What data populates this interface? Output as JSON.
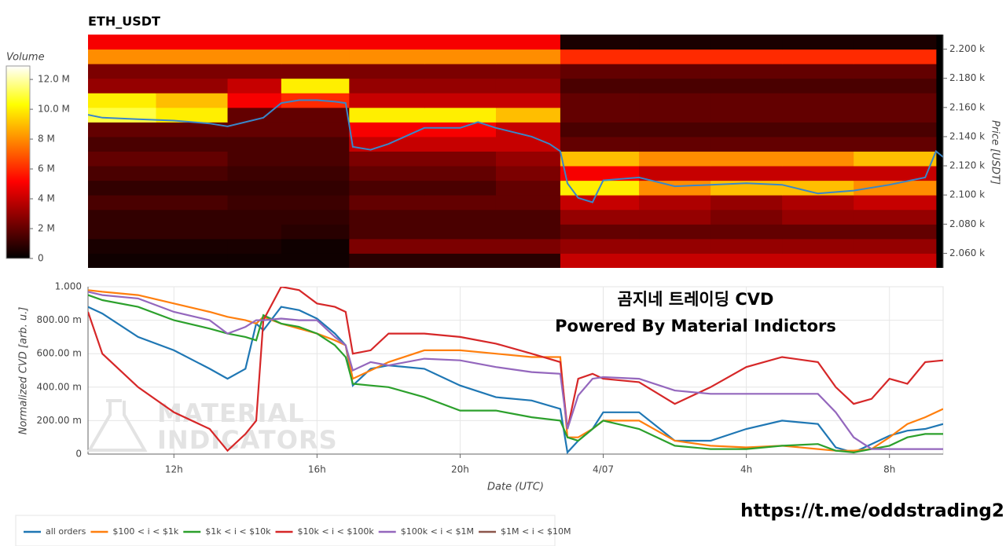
{
  "chart_data": [
    {
      "type": "heatmap",
      "title": "ETH_USDT",
      "colorbar_title": "Volume",
      "y_label": "Price [USDT]",
      "x_bins": [
        9.5,
        11.5,
        13.5,
        15,
        16.9,
        19,
        21,
        22.8,
        25,
        27,
        29,
        31,
        33.3
      ],
      "y_bins": [
        2050,
        2060,
        2070,
        2080,
        2090,
        2100,
        2110,
        2120,
        2130,
        2140,
        2150,
        2160,
        2170,
        2180,
        2190,
        2200,
        2210
      ],
      "z": [
        [
          0.3,
          0.3,
          0.3,
          0.3,
          0.8,
          0.8,
          0.8,
          4,
          4,
          4,
          4,
          4
        ],
        [
          0.5,
          0.5,
          0.5,
          0.3,
          2.5,
          2.5,
          2.5,
          3,
          3,
          3,
          3,
          3
        ],
        [
          1,
          1,
          1,
          0.8,
          1.5,
          1.5,
          1.5,
          2,
          2,
          2,
          2,
          2
        ],
        [
          1,
          1,
          1,
          1,
          1.5,
          1.5,
          1.5,
          3,
          3,
          2.5,
          3,
          3
        ],
        [
          1.5,
          1.5,
          1.2,
          1.2,
          2,
          2,
          2,
          4,
          3.5,
          3,
          3.5,
          4
        ],
        [
          1,
          1,
          1,
          1,
          1.5,
          1.5,
          2,
          10,
          8,
          9,
          9,
          8
        ],
        [
          1.5,
          1.5,
          1.2,
          1.2,
          2,
          2,
          2.5,
          5,
          4,
          4,
          4,
          4
        ],
        [
          2,
          2,
          1.5,
          1.5,
          2.5,
          2.5,
          3,
          9,
          8,
          8,
          8,
          9
        ],
        [
          1.5,
          1.5,
          1.5,
          1.5,
          4,
          4,
          4,
          2,
          2,
          2,
          2,
          2
        ],
        [
          2,
          2,
          2,
          2,
          5,
          5,
          4,
          1.5,
          1.5,
          1.5,
          1.5,
          1.5
        ],
        [
          11,
          10,
          2,
          2,
          10,
          10,
          9,
          2,
          2,
          2,
          2,
          2
        ],
        [
          10,
          9,
          5,
          6,
          4,
          4,
          4,
          2,
          2,
          2,
          2,
          2
        ],
        [
          3,
          3,
          4,
          10,
          3,
          3,
          3,
          1.5,
          1.5,
          1.5,
          1.5,
          1.5
        ],
        [
          2.5,
          2.5,
          2.5,
          2.5,
          2.5,
          2.5,
          2.5,
          2,
          2,
          2,
          2,
          2
        ],
        [
          8,
          8,
          8,
          8,
          8,
          8,
          8,
          6,
          6,
          6,
          6,
          6
        ],
        [
          5,
          5,
          5,
          5,
          5,
          5,
          5,
          0.5,
          0.5,
          0.5,
          0.5,
          0.5
        ]
      ],
      "colormap": [
        "#000000",
        "#800000",
        "#ff0000",
        "#ff8000",
        "#ffff00",
        "#ffffff"
      ],
      "clim": [
        0,
        12.9
      ],
      "cticks": [
        0,
        {
          "value": 2,
          "label": "2 M"
        },
        {
          "value": 4,
          "label": "4 M"
        },
        {
          "value": 6,
          "label": "6 M"
        },
        {
          "value": 8,
          "label": "8 M"
        },
        {
          "value": 10,
          "label": "10.0 M"
        },
        {
          "value": 12,
          "label": "12.0 M"
        }
      ],
      "xlim": [
        9.6,
        33.5
      ],
      "ylim": [
        2050,
        2210
      ],
      "yticks": [
        {
          "value": 2060,
          "label": "2.060 k"
        },
        {
          "value": 2080,
          "label": "2.080 k"
        },
        {
          "value": 2100,
          "label": "2.100 k"
        },
        {
          "value": 2120,
          "label": "2.120 k"
        },
        {
          "value": 2140,
          "label": "2.140 k"
        },
        {
          "value": 2160,
          "label": "2.160 k"
        },
        {
          "value": 2180,
          "label": "2.180 k"
        },
        {
          "value": 2200,
          "label": "2.200 k"
        }
      ],
      "price_line": {
        "color": "#3a86c8",
        "x": [
          9.6,
          10,
          11,
          12,
          13,
          13.5,
          14,
          14.5,
          15,
          15.5,
          16,
          16.5,
          16.8,
          17,
          17.5,
          18,
          19,
          20,
          20.5,
          21,
          22,
          22.5,
          22.8,
          23,
          23.3,
          23.7,
          24,
          25,
          26,
          27,
          28,
          29,
          30,
          31,
          32,
          33,
          33.3,
          33.5
        ],
        "values": [
          2155,
          2153,
          2152,
          2151,
          2149,
          2147,
          2150,
          2153,
          2163,
          2165,
          2165,
          2164,
          2163,
          2133,
          2131,
          2135,
          2146,
          2146,
          2150,
          2146,
          2140,
          2135,
          2130,
          2108,
          2098,
          2095,
          2110,
          2112,
          2106,
          2107,
          2108,
          2107,
          2101,
          2103,
          2107,
          2112,
          2130,
          2126
        ]
      }
    },
    {
      "type": "line",
      "x_label": "Date (UTC)",
      "y_label": "Normalized CVD [arb. u.]",
      "annotations": [
        "곰지네 트레이딩 CVD",
        "Powered By Material Indictors"
      ],
      "watermark": [
        "MATERIAL",
        "INDICATORS"
      ],
      "xlim": [
        9.6,
        33.5
      ],
      "ylim": [
        0,
        1
      ],
      "grid": true,
      "legend": "bottom",
      "xticks": [
        {
          "value": 12,
          "label": "12h"
        },
        {
          "value": 16,
          "label": "16h"
        },
        {
          "value": 20,
          "label": "20h"
        },
        {
          "value": 24,
          "label": "4/07"
        },
        {
          "value": 28,
          "label": "4h"
        },
        {
          "value": 32,
          "label": "8h"
        }
      ],
      "yticks": [
        0,
        {
          "value": 0.2,
          "label": "200.00 m"
        },
        {
          "value": 0.4,
          "label": "400.00 m"
        },
        {
          "value": 0.6,
          "label": "600.00 m"
        },
        {
          "value": 0.8,
          "label": "800.00 m"
        },
        {
          "value": 1,
          "label": "1.000"
        }
      ],
      "x": [
        9.6,
        10,
        11,
        12,
        13,
        13.5,
        14,
        14.3,
        14.5,
        15,
        15.5,
        16,
        16.5,
        16.8,
        17,
        17.5,
        18,
        19,
        20,
        21,
        22,
        22.8,
        23,
        23.3,
        23.7,
        24,
        25,
        26,
        27,
        28,
        29,
        30,
        30.5,
        31,
        31.5,
        32,
        32.5,
        33,
        33.5
      ],
      "series": [
        {
          "name": "all orders",
          "color": "#1f77b4",
          "values": [
            0.88,
            0.84,
            0.7,
            0.62,
            0.51,
            0.45,
            0.51,
            0.78,
            0.74,
            0.88,
            0.86,
            0.81,
            0.72,
            0.65,
            0.41,
            0.51,
            0.53,
            0.51,
            0.41,
            0.34,
            0.32,
            0.27,
            0.01,
            0.08,
            0.15,
            0.25,
            0.25,
            0.08,
            0.08,
            0.15,
            0.2,
            0.18,
            0.04,
            0.01,
            0.06,
            0.11,
            0.14,
            0.15,
            0.18
          ]
        },
        {
          "name": "$100 < i < $1k",
          "color": "#ff7f0e",
          "values": [
            0.98,
            0.97,
            0.95,
            0.9,
            0.85,
            0.82,
            0.8,
            0.78,
            0.82,
            0.78,
            0.75,
            0.72,
            0.68,
            0.65,
            0.45,
            0.5,
            0.55,
            0.62,
            0.62,
            0.6,
            0.58,
            0.58,
            0.1,
            0.1,
            0.15,
            0.2,
            0.2,
            0.08,
            0.05,
            0.04,
            0.05,
            0.03,
            0.02,
            0.02,
            0.03,
            0.1,
            0.18,
            0.22,
            0.27
          ]
        },
        {
          "name": "$1k < i < $10k",
          "color": "#2ca02c",
          "values": [
            0.95,
            0.92,
            0.88,
            0.8,
            0.75,
            0.72,
            0.7,
            0.68,
            0.83,
            0.78,
            0.76,
            0.72,
            0.65,
            0.58,
            0.42,
            0.41,
            0.4,
            0.34,
            0.26,
            0.26,
            0.22,
            0.2,
            0.1,
            0.08,
            0.15,
            0.2,
            0.15,
            0.05,
            0.03,
            0.03,
            0.05,
            0.06,
            0.02,
            0.01,
            0.03,
            0.05,
            0.1,
            0.12,
            0.12
          ]
        },
        {
          "name": "$10k < i < $100k",
          "color": "#d62728",
          "values": [
            0.85,
            0.6,
            0.4,
            0.25,
            0.15,
            0.02,
            0.12,
            0.2,
            0.8,
            1.0,
            0.98,
            0.9,
            0.88,
            0.85,
            0.6,
            0.62,
            0.72,
            0.72,
            0.7,
            0.66,
            0.6,
            0.55,
            0.15,
            0.45,
            0.48,
            0.45,
            0.43,
            0.3,
            0.4,
            0.52,
            0.58,
            0.55,
            0.4,
            0.3,
            0.33,
            0.45,
            0.42,
            0.55,
            0.56
          ]
        },
        {
          "name": "$100k < i < $1M",
          "color": "#9467bd",
          "values": [
            0.97,
            0.95,
            0.93,
            0.85,
            0.8,
            0.72,
            0.76,
            0.8,
            0.8,
            0.81,
            0.8,
            0.8,
            0.7,
            0.65,
            0.5,
            0.55,
            0.53,
            0.57,
            0.56,
            0.52,
            0.49,
            0.48,
            0.15,
            0.35,
            0.45,
            0.46,
            0.45,
            0.38,
            0.36,
            0.36,
            0.36,
            0.36,
            0.25,
            0.1,
            0.03,
            0.03,
            0.03,
            0.03,
            0.03
          ]
        },
        {
          "name": "$1M < i < $10M",
          "color": "#8c564b",
          "values": [
            null,
            null,
            null,
            null,
            null,
            null,
            null,
            null,
            null,
            null,
            null,
            null,
            null,
            null,
            null,
            null,
            null,
            null,
            null,
            null,
            null,
            null,
            null,
            null,
            null,
            null,
            null,
            null,
            null,
            null,
            null,
            null,
            null,
            null,
            null,
            null,
            null,
            null,
            null
          ]
        }
      ]
    }
  ],
  "link": "https://t.me/oddstrading2"
}
